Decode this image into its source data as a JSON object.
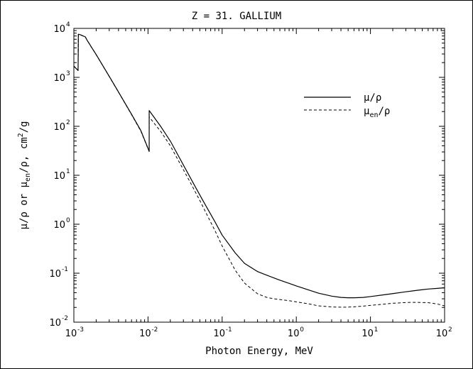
{
  "chart_data": {
    "type": "line",
    "title": "Z = 31.  GALLIUM",
    "xlabel": "Photon Energy, MeV",
    "ylabel": {
      "parts": [
        "μ/ρ or μ",
        "en",
        "/ρ, cm",
        "2",
        "/g"
      ]
    },
    "x_scale": "log",
    "y_scale": "log",
    "xlim": [
      0.001,
      100
    ],
    "ylim": [
      0.01,
      10000
    ],
    "x_ticks": [
      {
        "value": 0.001,
        "base": "10",
        "exp": "-3"
      },
      {
        "value": 0.01,
        "base": "10",
        "exp": "-2"
      },
      {
        "value": 0.1,
        "base": "10",
        "exp": "-1"
      },
      {
        "value": 1,
        "base": "10",
        "exp": "0"
      },
      {
        "value": 10,
        "base": "10",
        "exp": "1"
      },
      {
        "value": 100,
        "base": "10",
        "exp": "2"
      }
    ],
    "y_ticks": [
      {
        "value": 0.01,
        "base": "10",
        "exp": "-2"
      },
      {
        "value": 0.1,
        "base": "10",
        "exp": "-1"
      },
      {
        "value": 1,
        "base": "10",
        "exp": "0"
      },
      {
        "value": 10,
        "base": "10",
        "exp": "1"
      },
      {
        "value": 100,
        "base": "10",
        "exp": "2"
      },
      {
        "value": 1000,
        "base": "10",
        "exp": "3"
      },
      {
        "value": 10000,
        "base": "10",
        "exp": "4"
      }
    ],
    "legend_position": "top-right",
    "grid": false,
    "series": [
      {
        "name": "μ/ρ",
        "name_parts": {
          "main": "μ/ρ"
        },
        "style": "solid",
        "x": [
          0.001,
          0.00114,
          0.00115,
          0.00123,
          0.00143,
          0.0015,
          0.002,
          0.003,
          0.004,
          0.005,
          0.006,
          0.008,
          0.01037,
          0.010371,
          0.015,
          0.02,
          0.03,
          0.04,
          0.05,
          0.06,
          0.08,
          0.1,
          0.15,
          0.2,
          0.3,
          0.4,
          0.5,
          0.6,
          0.8,
          1,
          1.5,
          2,
          3,
          4,
          5,
          6,
          8,
          10,
          15,
          20,
          30,
          40,
          50,
          60,
          80,
          100
        ],
        "y": [
          1697,
          1380,
          7600,
          7400,
          6700,
          5810,
          2920,
          1050,
          502,
          282,
          176,
          82,
          31,
          210,
          97,
          50,
          16.2,
          7.3,
          3.95,
          2.42,
          1.12,
          0.6,
          0.26,
          0.159,
          0.108,
          0.091,
          0.08,
          0.072,
          0.062,
          0.055,
          0.045,
          0.039,
          0.034,
          0.032,
          0.0315,
          0.0315,
          0.032,
          0.0333,
          0.0361,
          0.0383,
          0.0417,
          0.0442,
          0.046,
          0.0475,
          0.049,
          0.0505
        ]
      },
      {
        "name": "μen/ρ",
        "name_parts": {
          "main": "μ",
          "sub": "en",
          "tail": "/ρ"
        },
        "style": "dashed",
        "x": [
          0.001,
          0.00114,
          0.00115,
          0.00123,
          0.00143,
          0.0015,
          0.002,
          0.003,
          0.004,
          0.005,
          0.006,
          0.008,
          0.01037,
          0.010371,
          0.015,
          0.02,
          0.03,
          0.04,
          0.05,
          0.06,
          0.08,
          0.1,
          0.15,
          0.2,
          0.3,
          0.4,
          0.5,
          0.6,
          0.8,
          1,
          1.5,
          2,
          3,
          4,
          5,
          6,
          8,
          10,
          15,
          20,
          30,
          40,
          50,
          60,
          80,
          100
        ],
        "y": [
          1690,
          1375,
          7550,
          7350,
          6650,
          5780,
          2900,
          1040,
          497,
          278,
          173,
          80,
          30.5,
          155,
          77,
          40,
          13,
          5.8,
          3.05,
          1.76,
          0.74,
          0.36,
          0.115,
          0.063,
          0.038,
          0.032,
          0.03,
          0.029,
          0.0275,
          0.026,
          0.0235,
          0.0215,
          0.0205,
          0.0202,
          0.0203,
          0.0206,
          0.0213,
          0.022,
          0.0233,
          0.0243,
          0.0252,
          0.0254,
          0.0252,
          0.025,
          0.0235,
          0.0215
        ]
      }
    ]
  }
}
